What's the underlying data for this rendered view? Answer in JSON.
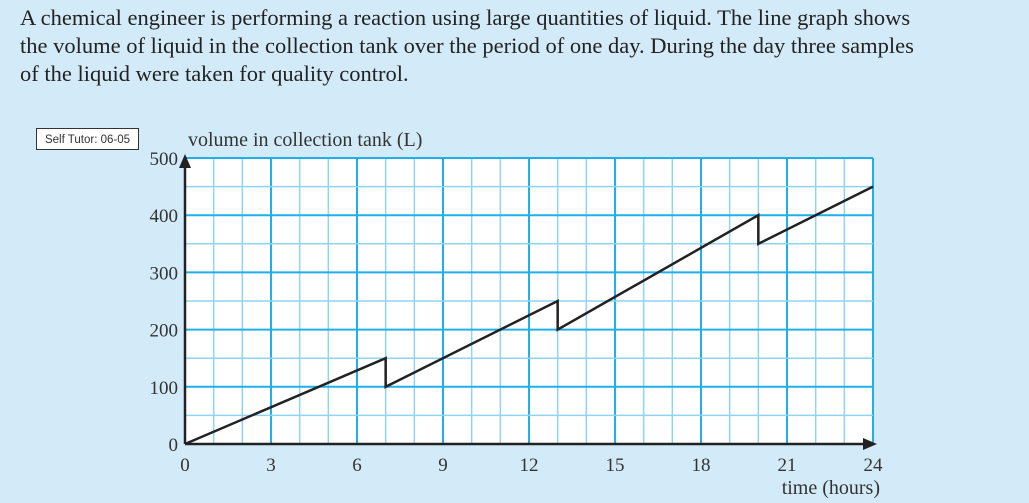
{
  "question": "A chemical engineer is performing a reaction using large quantities of liquid.  The line graph shows\nthe volume of liquid in the collection tank over the period of one day.  During the day three samples\nof the liquid were taken for quality control.",
  "badge": "Self Tutor: 06-05",
  "chart_data": {
    "type": "line",
    "title": "",
    "ylabel": "volume in collection tank (L)",
    "xlabel": "time (hours)",
    "xlim": [
      0,
      24
    ],
    "ylim": [
      0,
      500
    ],
    "xticks": [
      0,
      3,
      6,
      9,
      12,
      15,
      18,
      21,
      24
    ],
    "yticks": [
      0,
      100,
      200,
      300,
      400,
      500
    ],
    "grid": {
      "x_minor": 1,
      "x_major": 3,
      "y_minor": 50,
      "y_major": 100
    },
    "series": [
      {
        "name": "volume",
        "points": [
          [
            0,
            0
          ],
          [
            7,
            150
          ],
          [
            7,
            100
          ],
          [
            13,
            250
          ],
          [
            13,
            200
          ],
          [
            20,
            400
          ],
          [
            20,
            350
          ],
          [
            24,
            450
          ]
        ]
      }
    ],
    "colors": {
      "line": "#222222",
      "grid_major": "#1fb0ea",
      "grid_minor": "#8fd4f3",
      "background": "#d3ebf8"
    }
  }
}
